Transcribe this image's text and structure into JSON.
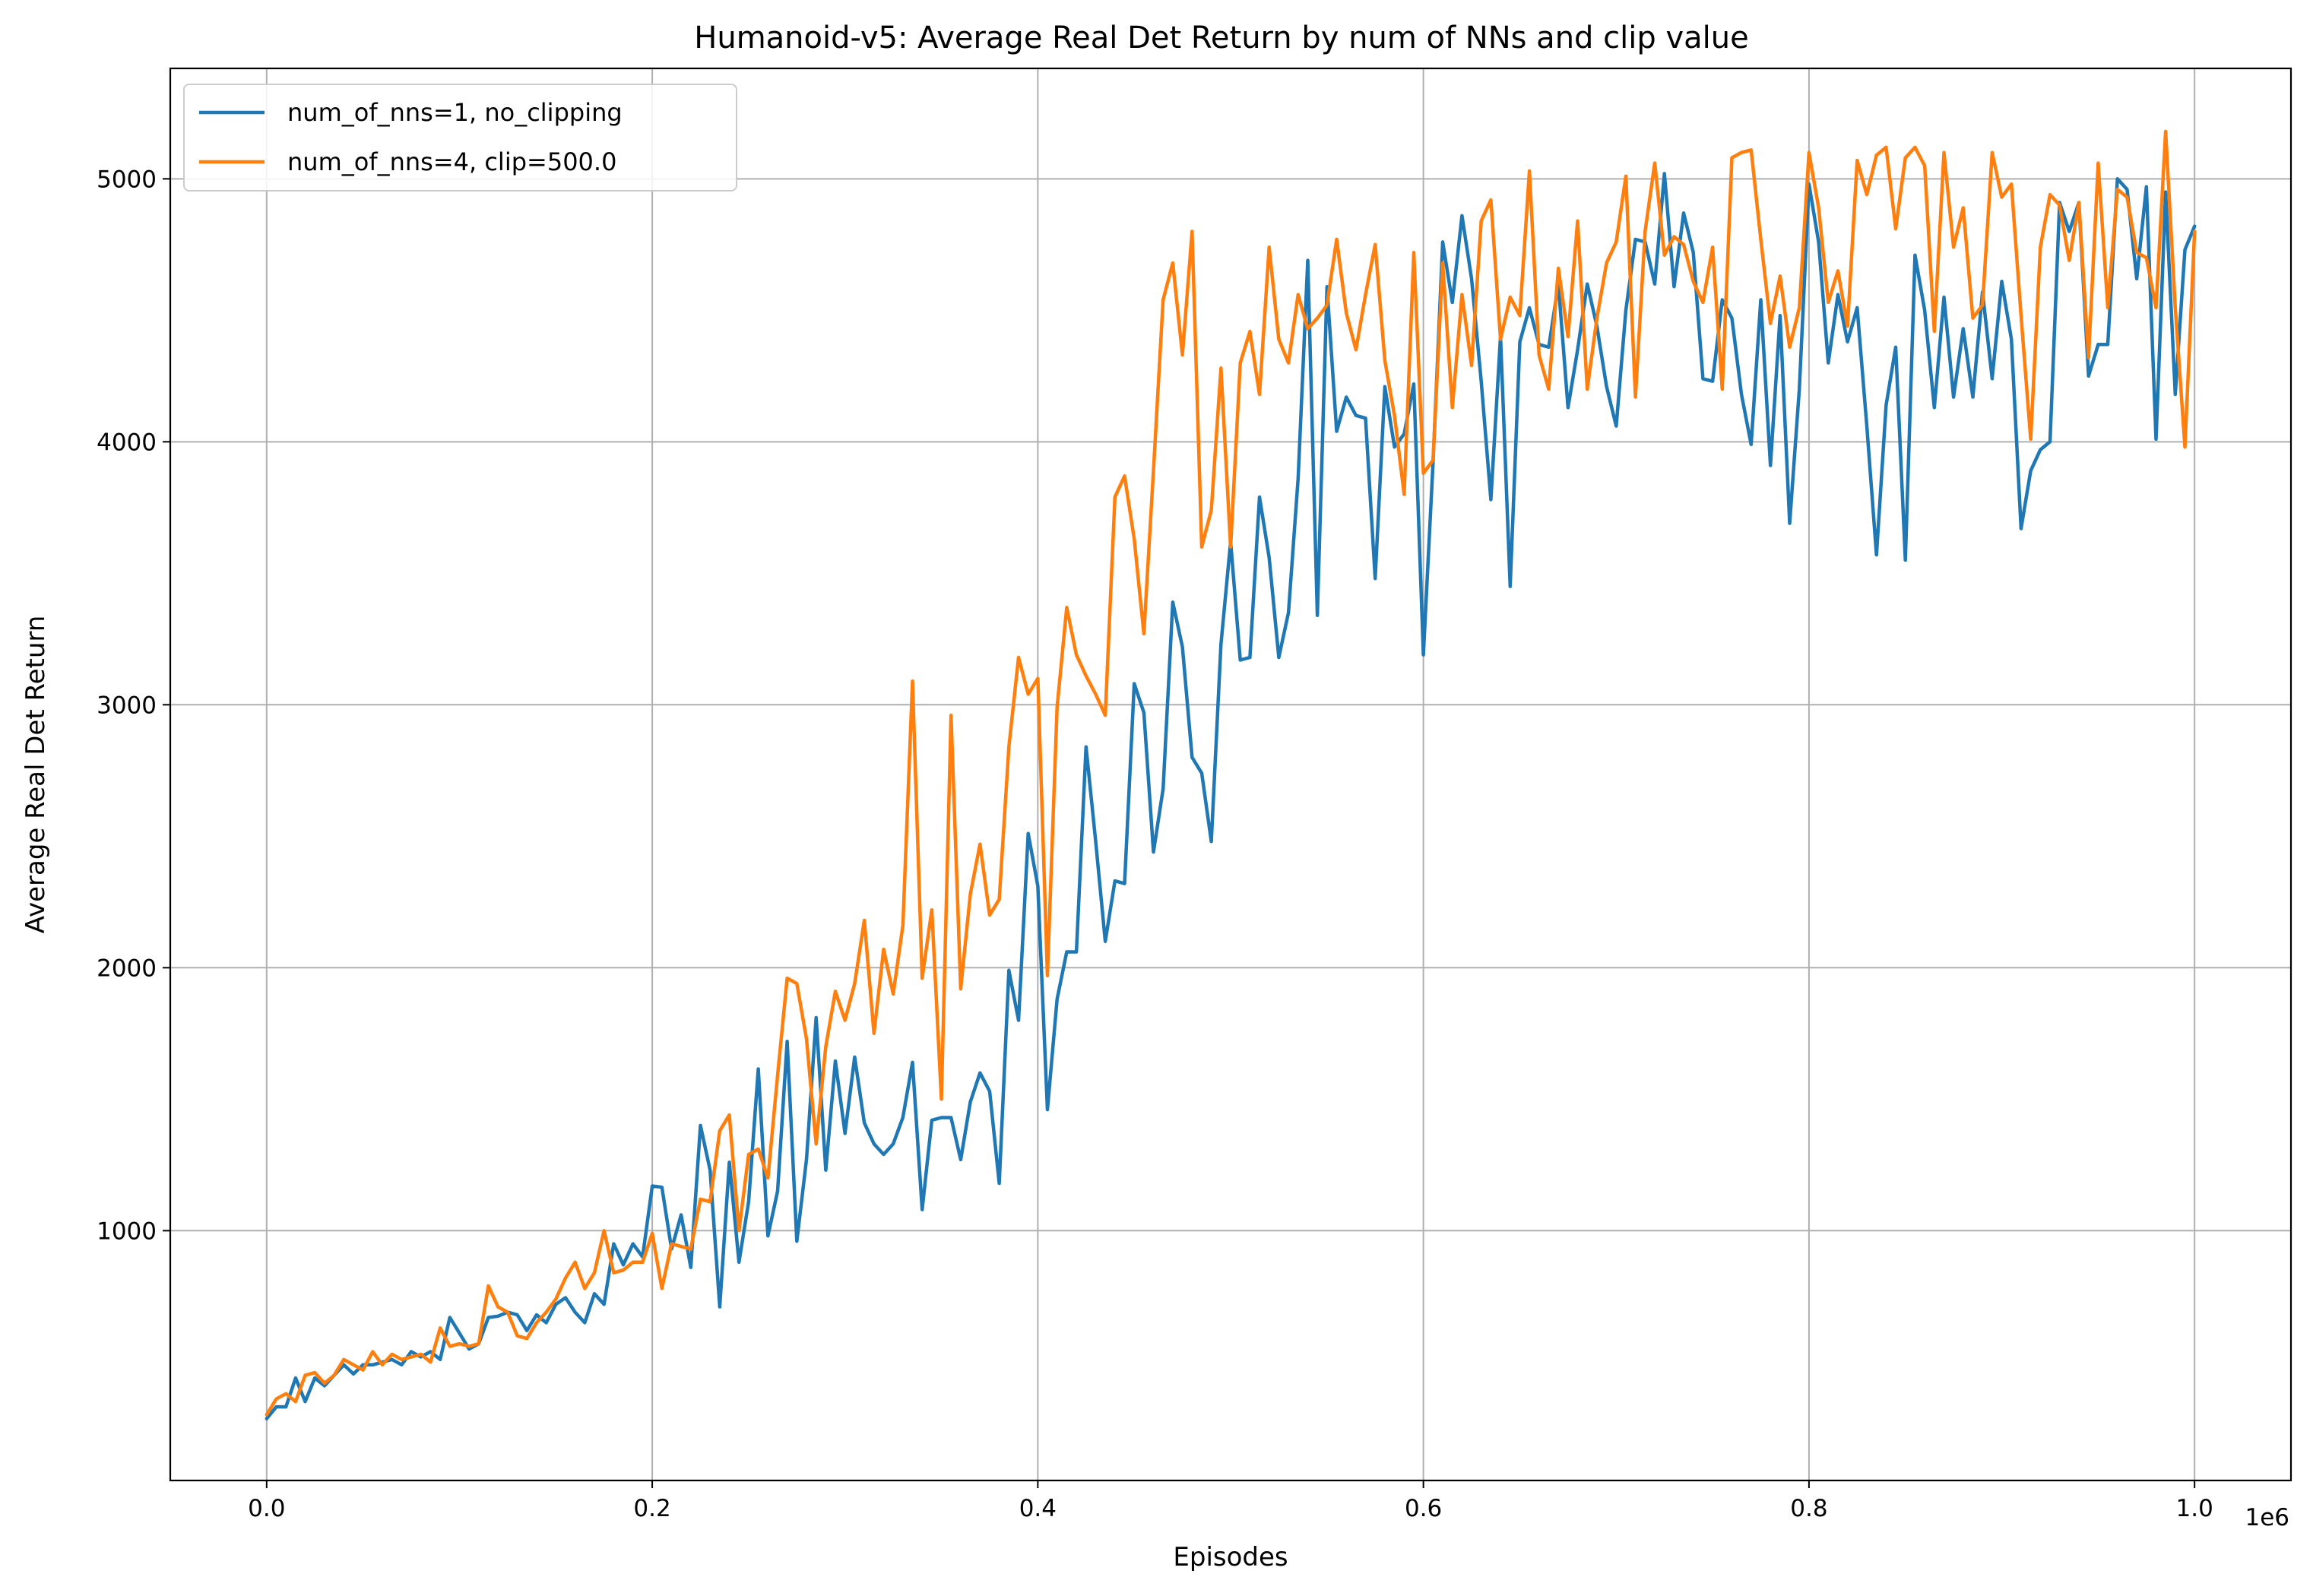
{
  "chart_data": {
    "type": "line",
    "title": "Humanoid-v5: Average Real Det Return by num of NNs and clip value",
    "xlabel": "Episodes",
    "ylabel": "Average Real Det Return",
    "x_offset_label": "1e6",
    "xlim": [
      -0.05,
      1.05
    ],
    "ylim": [
      50,
      5420
    ],
    "x_scale_multiplier": 1000000,
    "xticks": [
      0.0,
      0.2,
      0.4,
      0.6,
      0.8,
      1.0
    ],
    "xtick_labels": [
      "0.0",
      "0.2",
      "0.4",
      "0.6",
      "0.8",
      "1.0"
    ],
    "yticks": [
      1000,
      2000,
      3000,
      4000,
      5000
    ],
    "ytick_labels": [
      "1000",
      "2000",
      "3000",
      "4000",
      "5000"
    ],
    "grid": true,
    "legend_position": "upper-left",
    "series": [
      {
        "name": "num_of_nns=1, no_clipping",
        "color": "#1f77b4",
        "x": [
          0.0,
          0.005,
          0.01,
          0.015,
          0.02,
          0.025,
          0.03,
          0.035,
          0.04,
          0.045,
          0.05,
          0.055,
          0.06,
          0.065,
          0.07,
          0.075,
          0.08,
          0.085,
          0.09,
          0.095,
          0.1,
          0.105,
          0.11,
          0.115,
          0.12,
          0.125,
          0.13,
          0.135,
          0.14,
          0.145,
          0.15,
          0.155,
          0.16,
          0.165,
          0.17,
          0.175,
          0.18,
          0.185,
          0.19,
          0.195,
          0.2,
          0.205,
          0.21,
          0.215,
          0.22,
          0.225,
          0.23,
          0.235,
          0.24,
          0.245,
          0.25,
          0.255,
          0.26,
          0.265,
          0.27,
          0.275,
          0.28,
          0.285,
          0.29,
          0.295,
          0.3,
          0.305,
          0.31,
          0.315,
          0.32,
          0.325,
          0.33,
          0.335,
          0.34,
          0.345,
          0.35,
          0.355,
          0.36,
          0.365,
          0.37,
          0.375,
          0.38,
          0.385,
          0.39,
          0.395,
          0.4,
          0.405,
          0.41,
          0.415,
          0.42,
          0.425,
          0.43,
          0.435,
          0.44,
          0.445,
          0.45,
          0.455,
          0.46,
          0.465,
          0.47,
          0.475,
          0.48,
          0.485,
          0.49,
          0.495,
          0.5,
          0.505,
          0.51,
          0.515,
          0.52,
          0.525,
          0.53,
          0.535,
          0.54,
          0.545,
          0.55,
          0.555,
          0.56,
          0.565,
          0.57,
          0.575,
          0.58,
          0.585,
          0.59,
          0.595,
          0.6,
          0.605,
          0.61,
          0.615,
          0.62,
          0.625,
          0.63,
          0.635,
          0.64,
          0.645,
          0.65,
          0.655,
          0.66,
          0.665,
          0.67,
          0.675,
          0.68,
          0.685,
          0.69,
          0.695,
          0.7,
          0.705,
          0.71,
          0.715,
          0.72,
          0.725,
          0.73,
          0.735,
          0.74,
          0.745,
          0.75,
          0.755,
          0.76,
          0.765,
          0.77,
          0.775,
          0.78,
          0.785,
          0.79,
          0.795,
          0.8,
          0.805,
          0.81,
          0.815,
          0.82,
          0.825,
          0.83,
          0.835,
          0.84,
          0.845,
          0.85,
          0.855,
          0.86,
          0.865,
          0.87,
          0.875,
          0.88,
          0.885,
          0.89,
          0.895,
          0.9,
          0.905,
          0.91,
          0.915,
          0.92,
          0.925,
          0.93,
          0.935,
          0.94,
          0.945,
          0.95,
          0.955,
          0.96,
          0.965,
          0.97,
          0.975,
          0.98,
          0.985,
          0.99,
          0.995,
          1.0
        ],
        "y": [
          285,
          330,
          330,
          440,
          350,
          440,
          410,
          450,
          490,
          455,
          490,
          490,
          500,
          510,
          490,
          540,
          520,
          540,
          510,
          670,
          610,
          550,
          570,
          670,
          675,
          690,
          680,
          620,
          680,
          650,
          720,
          745,
          690,
          650,
          760,
          720,
          950,
          870,
          950,
          900,
          1170,
          1165,
          930,
          1060,
          860,
          1400,
          1230,
          710,
          1260,
          880,
          1110,
          1615,
          980,
          1150,
          1720,
          960,
          1270,
          1810,
          1230,
          1645,
          1370,
          1660,
          1410,
          1330,
          1290,
          1330,
          1430,
          1640,
          1080,
          1420,
          1430,
          1430,
          1270,
          1490,
          1600,
          1530,
          1180,
          1990,
          1800,
          2510,
          2310,
          1460,
          1880,
          2060,
          2060,
          2840,
          2480,
          2100,
          2330,
          2320,
          3080,
          2970,
          2440,
          2680,
          3390,
          3220,
          2800,
          2740,
          2480,
          3230,
          3620,
          3170,
          3180,
          3790,
          3560,
          3180,
          3350,
          3860,
          4690,
          3340,
          4590,
          4040,
          4170,
          4100,
          4090,
          3480,
          4210,
          3980,
          4030,
          4220,
          3190,
          3920,
          4760,
          4530,
          4860,
          4620,
          4230,
          3780,
          4400,
          3450,
          4380,
          4510,
          4370,
          4360,
          4600,
          4130,
          4350,
          4600,
          4440,
          4210,
          4060,
          4500,
          4770,
          4760,
          4600,
          5020,
          4590,
          4870,
          4720,
          4240,
          4230,
          4540,
          4470,
          4180,
          3990,
          4540,
          3910,
          4480,
          3690,
          4200,
          4980,
          4760,
          4300,
          4560,
          4380,
          4510,
          4060,
          3570,
          4140,
          4360,
          3550,
          4710,
          4500,
          4130,
          4550,
          4170,
          4430,
          4170,
          4570,
          4240,
          4610,
          4390,
          3670,
          3890,
          3970,
          4000,
          4910,
          4800,
          4910,
          4250,
          4370,
          4370,
          5000,
          4960,
          4620,
          4970,
          4010,
          4950,
          4180,
          4730,
          4820
        ]
      },
      {
        "name": "num_of_nns=4, clip=500.0",
        "color": "#ff7f0e",
        "x": [
          0.0,
          0.005,
          0.01,
          0.015,
          0.02,
          0.025,
          0.03,
          0.035,
          0.04,
          0.045,
          0.05,
          0.055,
          0.06,
          0.065,
          0.07,
          0.075,
          0.08,
          0.085,
          0.09,
          0.095,
          0.1,
          0.105,
          0.11,
          0.115,
          0.12,
          0.125,
          0.13,
          0.135,
          0.14,
          0.145,
          0.15,
          0.155,
          0.16,
          0.165,
          0.17,
          0.175,
          0.18,
          0.185,
          0.19,
          0.195,
          0.2,
          0.205,
          0.21,
          0.215,
          0.22,
          0.225,
          0.23,
          0.235,
          0.24,
          0.245,
          0.25,
          0.255,
          0.26,
          0.265,
          0.27,
          0.275,
          0.28,
          0.285,
          0.29,
          0.295,
          0.3,
          0.305,
          0.31,
          0.315,
          0.32,
          0.325,
          0.33,
          0.335,
          0.34,
          0.345,
          0.35,
          0.355,
          0.36,
          0.365,
          0.37,
          0.375,
          0.38,
          0.385,
          0.39,
          0.395,
          0.4,
          0.405,
          0.41,
          0.415,
          0.42,
          0.425,
          0.43,
          0.435,
          0.44,
          0.445,
          0.45,
          0.455,
          0.46,
          0.465,
          0.47,
          0.475,
          0.48,
          0.485,
          0.49,
          0.495,
          0.5,
          0.505,
          0.51,
          0.515,
          0.52,
          0.525,
          0.53,
          0.535,
          0.54,
          0.545,
          0.55,
          0.555,
          0.56,
          0.565,
          0.57,
          0.575,
          0.58,
          0.585,
          0.59,
          0.595,
          0.6,
          0.605,
          0.61,
          0.615,
          0.62,
          0.625,
          0.63,
          0.635,
          0.64,
          0.645,
          0.65,
          0.655,
          0.66,
          0.665,
          0.67,
          0.675,
          0.68,
          0.685,
          0.69,
          0.695,
          0.7,
          0.705,
          0.71,
          0.715,
          0.72,
          0.725,
          0.73,
          0.735,
          0.74,
          0.745,
          0.75,
          0.755,
          0.76,
          0.765,
          0.77,
          0.775,
          0.78,
          0.785,
          0.79,
          0.795,
          0.8,
          0.805,
          0.81,
          0.815,
          0.82,
          0.825,
          0.83,
          0.835,
          0.84,
          0.845,
          0.85,
          0.855,
          0.86,
          0.865,
          0.87,
          0.875,
          0.88,
          0.885,
          0.89,
          0.895,
          0.9,
          0.905,
          0.91,
          0.915,
          0.92,
          0.925,
          0.93,
          0.935,
          0.94,
          0.945,
          0.95,
          0.955,
          0.96,
          0.965,
          0.97,
          0.975,
          0.98,
          0.985,
          0.99,
          0.995,
          1.0
        ],
        "y": [
          300,
          360,
          380,
          350,
          450,
          460,
          420,
          450,
          510,
          490,
          470,
          540,
          490,
          530,
          510,
          520,
          530,
          500,
          630,
          560,
          570,
          560,
          570,
          790,
          710,
          690,
          600,
          590,
          650,
          690,
          740,
          820,
          880,
          780,
          840,
          1000,
          840,
          850,
          880,
          880,
          990,
          780,
          950,
          940,
          930,
          1120,
          1110,
          1380,
          1440,
          1000,
          1290,
          1310,
          1200,
          1590,
          1960,
          1940,
          1730,
          1330,
          1700,
          1910,
          1800,
          1940,
          2180,
          1750,
          2070,
          1900,
          2160,
          3090,
          1960,
          2220,
          1500,
          2960,
          1920,
          2280,
          2470,
          2200,
          2260,
          2840,
          3180,
          3040,
          3100,
          1970,
          2990,
          3370,
          3190,
          3110,
          3040,
          2960,
          3790,
          3870,
          3630,
          3270,
          3890,
          4540,
          4680,
          4330,
          4800,
          3600,
          3740,
          4280,
          3600,
          4300,
          4420,
          4180,
          4740,
          4390,
          4300,
          4560,
          4430,
          4470,
          4520,
          4770,
          4490,
          4350,
          4560,
          4750,
          4310,
          4100,
          3800,
          4720,
          3880,
          3930,
          4680,
          4130,
          4560,
          4290,
          4840,
          4920,
          4390,
          4550,
          4480,
          5030,
          4330,
          4200,
          4660,
          4400,
          4840,
          4200,
          4470,
          4680,
          4760,
          5010,
          4170,
          4800,
          5060,
          4710,
          4780,
          4750,
          4610,
          4530,
          4740,
          4200,
          5080,
          5100,
          5110,
          4770,
          4450,
          4630,
          4360,
          4510,
          5100,
          4890,
          4530,
          4650,
          4440,
          5070,
          4940,
          5090,
          5120,
          4810,
          5080,
          5120,
          5050,
          4420,
          5100,
          4740,
          4890,
          4470,
          4520,
          5100,
          4930,
          4980,
          4480,
          4010,
          4740,
          4940,
          4900,
          4690,
          4910,
          4320,
          5060,
          4510,
          4960,
          4930,
          4720,
          4700,
          4510,
          5180,
          4510,
          3980,
          4800
        ]
      }
    ]
  }
}
